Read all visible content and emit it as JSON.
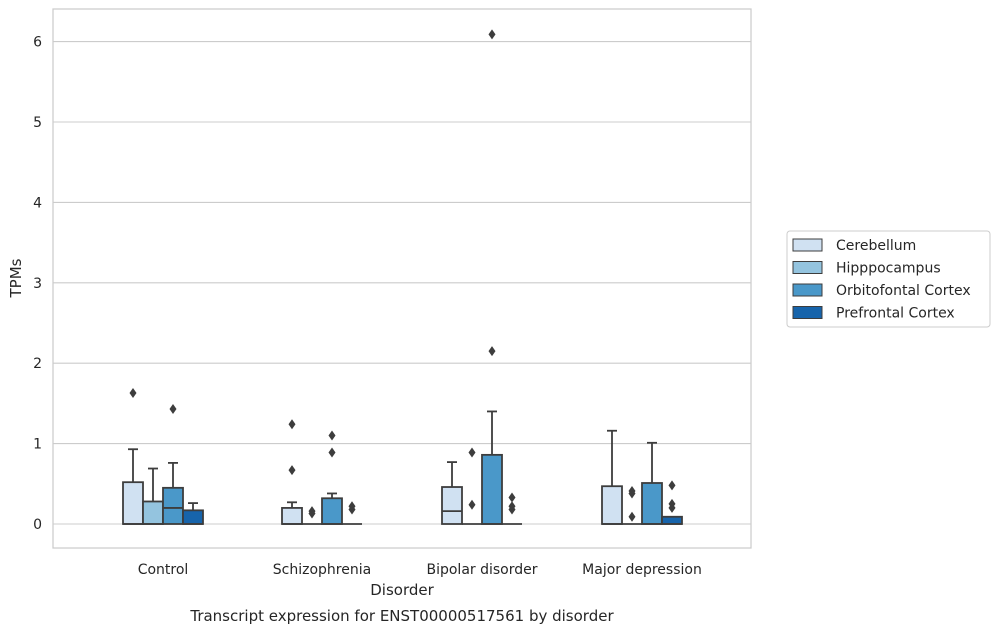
{
  "chart_data": {
    "type": "box",
    "title": "Transcript expression for ENST00000517561 by disorder",
    "xlabel": "Disorder",
    "ylabel": "TPMs",
    "ylim": [
      -0.3,
      6.4
    ],
    "yticks": [
      0,
      1,
      2,
      3,
      4,
      5,
      6
    ],
    "ytick_labels": [
      "0",
      "1",
      "2",
      "3",
      "4",
      "5",
      "6"
    ],
    "grid": "horizontal",
    "legend_position": "right",
    "categories": [
      "Control",
      "Schizophrenia",
      "Bipolar disorder",
      "Major depression"
    ],
    "series": [
      {
        "name": "Cerebellum",
        "color": "#d0e1f2",
        "boxes": [
          {
            "min": 0,
            "q1": 0,
            "median": 0,
            "q3": 0.52,
            "max": 0.93,
            "outliers": [
              1.63
            ]
          },
          {
            "min": 0,
            "q1": 0,
            "median": 0,
            "q3": 0.2,
            "max": 0.27,
            "outliers": [
              0.67,
              1.24
            ]
          },
          {
            "min": 0,
            "q1": 0,
            "median": 0.16,
            "q3": 0.46,
            "max": 0.77,
            "outliers": []
          },
          {
            "min": 0,
            "q1": 0,
            "median": 0,
            "q3": 0.47,
            "max": 1.16,
            "outliers": []
          }
        ]
      },
      {
        "name": "Hipppocampus",
        "color": "#94c4df",
        "boxes": [
          {
            "min": 0,
            "q1": 0,
            "median": 0,
            "q3": 0.28,
            "max": 0.69,
            "outliers": []
          },
          {
            "min": 0,
            "q1": 0,
            "median": 0,
            "q3": 0,
            "max": 0,
            "outliers": [
              0.13,
              0.16
            ]
          },
          {
            "min": 0,
            "q1": 0,
            "median": 0,
            "q3": 0,
            "max": 0,
            "outliers": [
              0.24,
              0.89
            ]
          },
          {
            "min": 0,
            "q1": 0,
            "median": 0,
            "q3": 0,
            "max": 0,
            "outliers": [
              0.09,
              0.38,
              0.41
            ]
          }
        ]
      },
      {
        "name": "Orbitofontal Cortex",
        "color": "#4a98c9",
        "boxes": [
          {
            "min": 0,
            "q1": 0,
            "median": 0.2,
            "q3": 0.45,
            "max": 0.76,
            "outliers": [
              1.43
            ]
          },
          {
            "min": 0,
            "q1": 0,
            "median": 0,
            "q3": 0.32,
            "max": 0.38,
            "outliers": [
              0.89,
              1.1
            ]
          },
          {
            "min": 0,
            "q1": 0,
            "median": 0,
            "q3": 0.86,
            "max": 1.4,
            "outliers": [
              2.15,
              6.09
            ]
          },
          {
            "min": 0,
            "q1": 0,
            "median": 0,
            "q3": 0.51,
            "max": 1.01,
            "outliers": []
          }
        ]
      },
      {
        "name": "Prefrontal Cortex",
        "color": "#1764ab",
        "boxes": [
          {
            "min": 0,
            "q1": 0,
            "median": 0,
            "q3": 0.17,
            "max": 0.26,
            "outliers": []
          },
          {
            "min": 0,
            "q1": 0,
            "median": 0,
            "q3": 0,
            "max": 0,
            "outliers": [
              0.18,
              0.22
            ]
          },
          {
            "min": 0,
            "q1": 0,
            "median": 0,
            "q3": 0,
            "max": 0,
            "outliers": [
              0.18,
              0.22,
              0.33
            ]
          },
          {
            "min": 0,
            "q1": 0,
            "median": 0,
            "q3": 0.09,
            "max": 0.09,
            "outliers": [
              0.2,
              0.25,
              0.48
            ]
          }
        ]
      }
    ]
  }
}
